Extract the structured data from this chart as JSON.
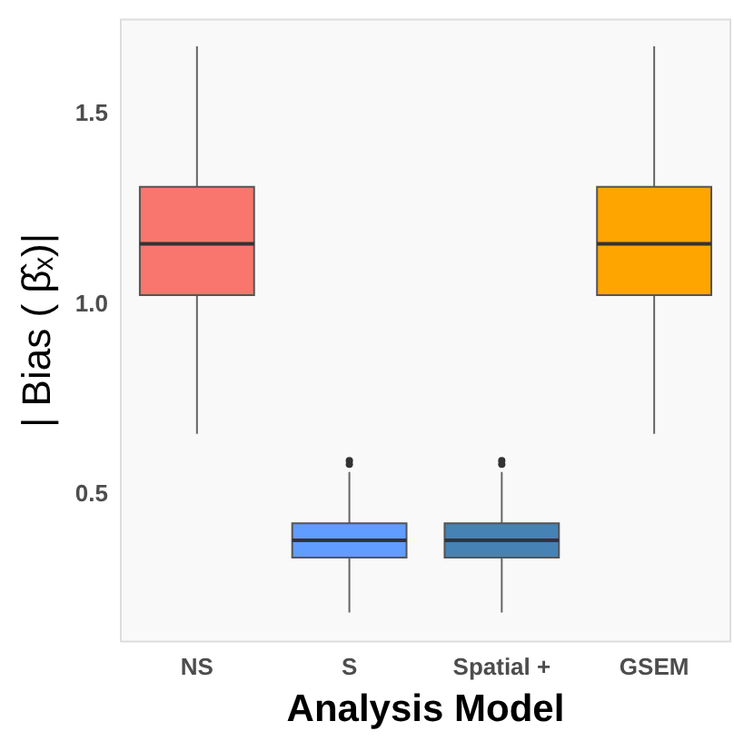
{
  "chart_data": {
    "type": "box",
    "xlabel": "Analysis Model",
    "ylabel": "| Bias ( β̂ₓ)|",
    "categories": [
      "NS",
      "S",
      "Spatial +",
      "GSEM"
    ],
    "colors": [
      "#f8766d",
      "#619cff",
      "#4682b4",
      "#ffa500"
    ],
    "boxes": [
      {
        "low": 0.66,
        "q1": 1.025,
        "median": 1.16,
        "q3": 1.31,
        "high": 1.68
      },
      {
        "low": 0.19,
        "q1": 0.335,
        "median": 0.38,
        "q3": 0.425,
        "high": 0.56,
        "outliers": [
          0.58,
          0.59
        ]
      },
      {
        "low": 0.19,
        "q1": 0.335,
        "median": 0.38,
        "q3": 0.425,
        "high": 0.56,
        "outliers": [
          0.58,
          0.59
        ]
      },
      {
        "low": 0.66,
        "q1": 1.025,
        "median": 1.16,
        "q3": 1.31,
        "high": 1.68
      }
    ],
    "ylim": [
      0.114,
      1.75
    ],
    "yticks": [
      0.5,
      {
        "value": 1,
        "label": "1.0"
      },
      1.5
    ],
    "grid": false,
    "legend": false
  }
}
